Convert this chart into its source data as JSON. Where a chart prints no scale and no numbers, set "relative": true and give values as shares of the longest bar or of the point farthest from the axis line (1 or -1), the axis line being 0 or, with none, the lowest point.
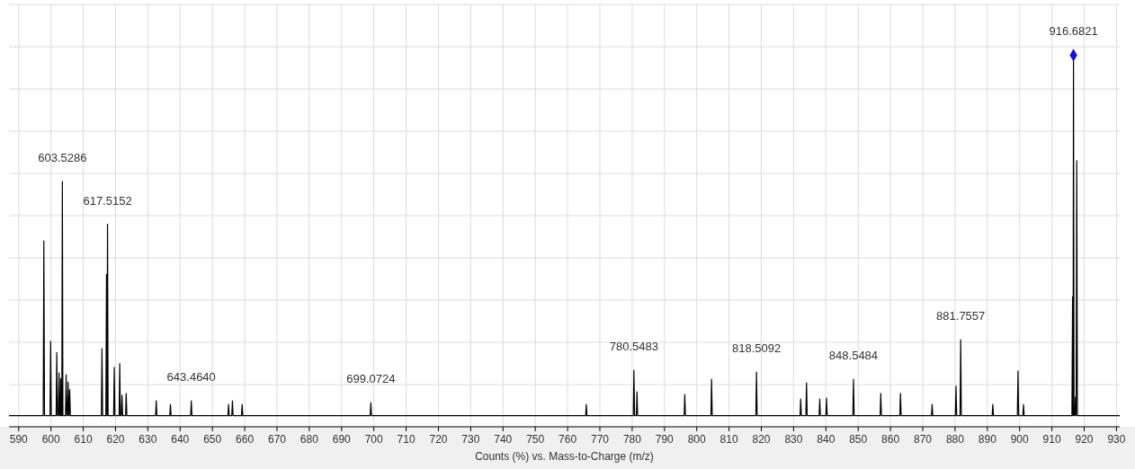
{
  "chart_data": {
    "type": "line",
    "relative": true,
    "xlabel": "Counts (%) vs. Mass-to-Charge (m/z)",
    "xlim": [
      587,
      931
    ],
    "xticks": [
      590,
      600,
      610,
      620,
      630,
      640,
      650,
      660,
      670,
      680,
      690,
      700,
      710,
      720,
      730,
      740,
      750,
      760,
      770,
      780,
      790,
      800,
      810,
      820,
      830,
      840,
      850,
      860,
      870,
      880,
      890,
      900,
      910,
      920,
      930
    ],
    "grid": true,
    "series": [
      {
        "color": "#000000",
        "x": [
          587,
          597.6,
          597.8,
          598.0,
          599.7,
          599.9,
          600.1,
          601.6,
          601.8,
          602.0,
          602.3,
          602.5,
          602.7,
          602.9,
          603.0,
          603.2,
          603.35,
          603.5286,
          603.7,
          604.5,
          604.7,
          604.9,
          605.1,
          605.3,
          605.5,
          605.6,
          605.8,
          606.0,
          615.6,
          615.8,
          616.0,
          617.0,
          617.2,
          617.35,
          617.5152,
          617.7,
          619.4,
          619.6,
          619.8,
          621.1,
          621.3,
          621.5,
          621.8,
          622.0,
          622.2,
          623.1,
          623.3,
          623.5,
          632.4,
          632.6,
          632.8,
          636.8,
          637.0,
          637.2,
          643.26,
          643.464,
          643.66,
          654.8,
          655.0,
          655.2,
          656.0,
          656.2,
          656.4,
          659.0,
          659.2,
          659.4,
          698.87,
          699.0724,
          699.27,
          765.6,
          765.8,
          766.0,
          780.35,
          780.5483,
          780.75,
          781.3,
          781.5,
          781.7,
          796.1,
          796.3,
          796.5,
          804.4,
          804.6,
          804.8,
          818.31,
          818.5092,
          818.71,
          832.0,
          832.2,
          832.4,
          833.8,
          834.0,
          834.2,
          837.9,
          838.1,
          838.3,
          840.0,
          840.2,
          840.4,
          848.35,
          848.5484,
          848.75,
          856.8,
          857.0,
          857.2,
          862.9,
          863.1,
          863.3,
          872.7,
          872.9,
          873.1,
          880.1,
          880.3,
          880.5,
          881.55,
          881.7557,
          881.95,
          891.5,
          891.7,
          891.9,
          899.3,
          899.5,
          899.7,
          901.0,
          901.2,
          901.4,
          916.2,
          916.4,
          916.55,
          916.6821,
          916.85,
          917.1,
          917.3,
          917.5,
          917.7,
          917.9,
          931
        ],
        "values": [
          0.03,
          0.03,
          0.5,
          0.03,
          0.03,
          0.23,
          0.03,
          0.03,
          0.2,
          0.03,
          0.03,
          0.145,
          0.03,
          0.03,
          0.13,
          0.03,
          0.03,
          0.66,
          0.03,
          0.03,
          0.14,
          0.03,
          0.03,
          0.12,
          0.03,
          0.03,
          0.1,
          0.03,
          0.03,
          0.21,
          0.03,
          0.03,
          0.41,
          0.03,
          0.545,
          0.03,
          0.03,
          0.16,
          0.03,
          0.03,
          0.17,
          0.03,
          0.03,
          0.085,
          0.03,
          0.03,
          0.09,
          0.03,
          0.03,
          0.07,
          0.03,
          0.03,
          0.06,
          0.03,
          0.03,
          0.07,
          0.03,
          0.03,
          0.06,
          0.03,
          0.03,
          0.07,
          0.03,
          0.03,
          0.06,
          0.03,
          0.03,
          0.065,
          0.03,
          0.03,
          0.06,
          0.03,
          0.03,
          0.152,
          0.03,
          0.03,
          0.094,
          0.03,
          0.03,
          0.087,
          0.03,
          0.03,
          0.128,
          0.03,
          0.03,
          0.147,
          0.03,
          0.03,
          0.075,
          0.03,
          0.03,
          0.118,
          0.03,
          0.03,
          0.075,
          0.03,
          0.03,
          0.077,
          0.03,
          0.03,
          0.128,
          0.03,
          0.03,
          0.09,
          0.03,
          0.03,
          0.09,
          0.03,
          0.03,
          0.06,
          0.03,
          0.03,
          0.11,
          0.03,
          0.03,
          0.234,
          0.03,
          0.03,
          0.06,
          0.03,
          0.03,
          0.15,
          0.03,
          0.03,
          0.06,
          0.03,
          0.03,
          0.35,
          0.03,
          1,
          0.03,
          0.03,
          0.08,
          0.03,
          0.716,
          0.03,
          0.03
        ]
      },
      {
        "type": "scatter",
        "color": "#1010e0",
        "marker": "diamond",
        "x": [
          916.6821
        ],
        "values": [
          1
        ]
      }
    ],
    "annotations": [
      {
        "text": "603.5286",
        "x": 603.5286,
        "y": 0.66
      },
      {
        "text": "617.5152",
        "x": 617.5152,
        "y": 0.545
      },
      {
        "text": "643.4640",
        "x": 643.464,
        "y": 0.07
      },
      {
        "text": "699.0724",
        "x": 699.0724,
        "y": 0.065
      },
      {
        "text": "780.5483",
        "x": 780.5483,
        "y": 0.152
      },
      {
        "text": "818.5092",
        "x": 818.5092,
        "y": 0.147
      },
      {
        "text": "848.5484",
        "x": 848.5484,
        "y": 0.128
      },
      {
        "text": "881.7557",
        "x": 881.7557,
        "y": 0.234
      },
      {
        "text": "916.6821",
        "x": 916.6821,
        "y": 1
      }
    ]
  }
}
